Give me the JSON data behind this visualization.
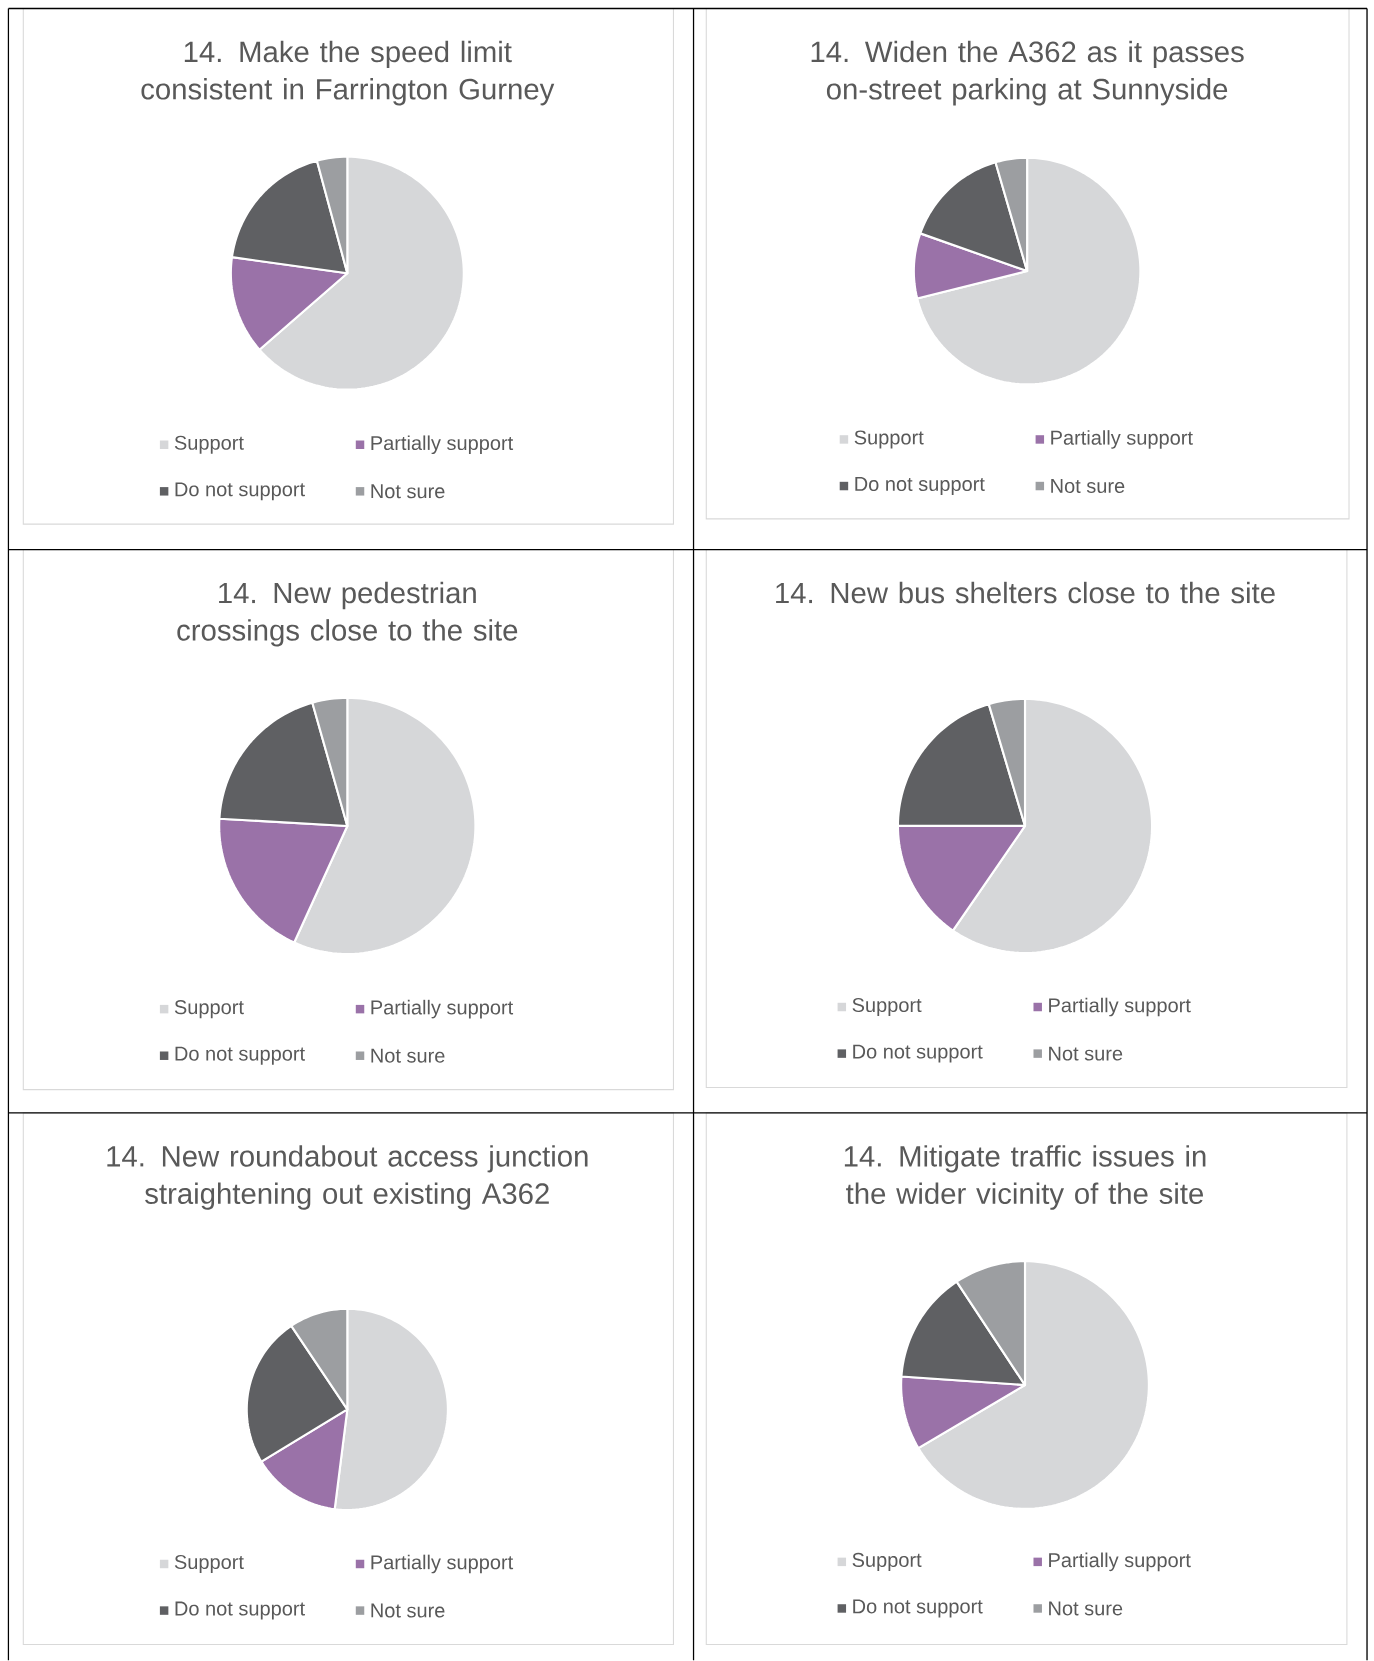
{
  "chart_data": [
    {
      "type": "pie",
      "title": "14. Make the speed limit consistent in Farrington Gurney",
      "categories": [
        "Support",
        "Partially support",
        "Do not support",
        "Not sure"
      ],
      "values": [
        63.6,
        13.6,
        18.6,
        4.2
      ],
      "colors": [
        "#d6d7d9",
        "#9a72a8",
        "#5f6063",
        "#9c9ea1"
      ],
      "legend": "bottom"
    },
    {
      "type": "pie",
      "title": "14. Widen the A362 as it passes on-street parking at Sunnyside",
      "categories": [
        "Support",
        "Partially support",
        "Do not support",
        "Not sure"
      ],
      "values": [
        71.1,
        9.3,
        15.1,
        4.5
      ],
      "colors": [
        "#d6d7d9",
        "#9a72a8",
        "#5f6063",
        "#9c9ea1"
      ],
      "legend": "bottom"
    },
    {
      "type": "pie",
      "title": "14. New pedestrian crossings close to the site",
      "categories": [
        "Support",
        "Partially support",
        "Do not support",
        "Not sure"
      ],
      "values": [
        56.8,
        19.1,
        19.7,
        4.4
      ],
      "colors": [
        "#d6d7d9",
        "#9a72a8",
        "#5f6063",
        "#9c9ea1"
      ],
      "legend": "bottom"
    },
    {
      "type": "pie",
      "title": "14. New bus shelters close to the site",
      "categories": [
        "Support",
        "Partially support",
        "Do not support",
        "Not sure"
      ],
      "values": [
        59.6,
        15.4,
        20.4,
        4.6
      ],
      "colors": [
        "#d6d7d9",
        "#9a72a8",
        "#5f6063",
        "#9c9ea1"
      ],
      "legend": "bottom"
    },
    {
      "type": "pie",
      "title": "14. New roundabout access junction straightening out existing A362",
      "categories": [
        "Support",
        "Partially support",
        "Do not support",
        "Not sure"
      ],
      "values": [
        52.0,
        14.3,
        24.3,
        9.4
      ],
      "colors": [
        "#d6d7d9",
        "#9a72a8",
        "#5f6063",
        "#9c9ea1"
      ],
      "legend": "bottom"
    },
    {
      "type": "pie",
      "title": "14. Mitigate traffic issues in the wider vicinity of the site",
      "categories": [
        "Support",
        "Partially support",
        "Do not support",
        "Not sure"
      ],
      "values": [
        66.5,
        9.6,
        14.6,
        9.3
      ],
      "colors": [
        "#d6d7d9",
        "#9a72a8",
        "#5f6063",
        "#9c9ea1"
      ],
      "legend": "bottom"
    }
  ]
}
